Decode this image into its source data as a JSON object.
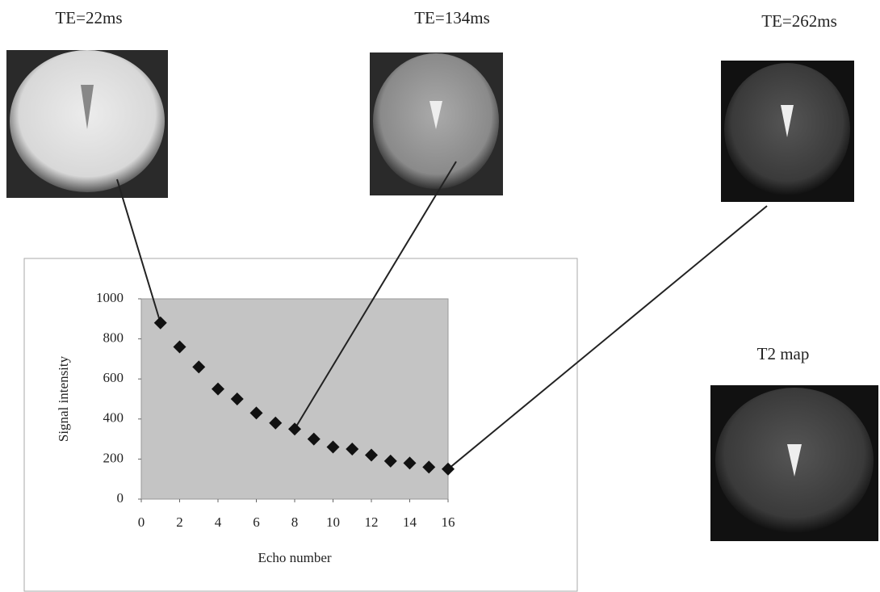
{
  "chart_data": {
    "type": "scatter",
    "x": [
      1,
      2,
      3,
      4,
      5,
      6,
      7,
      8,
      9,
      10,
      11,
      12,
      13,
      14,
      15,
      16
    ],
    "values": [
      880,
      760,
      660,
      550,
      500,
      430,
      380,
      350,
      300,
      260,
      250,
      220,
      190,
      180,
      160,
      150
    ],
    "color": "#111111",
    "marker": "diamond",
    "plot_background": "#c4c4c4",
    "xlim": [
      0,
      16
    ],
    "xticks": [
      0,
      2,
      4,
      6,
      8,
      10,
      12,
      14,
      16
    ],
    "ylim": [
      0,
      1000
    ],
    "yticks": [
      0,
      200,
      400,
      600,
      800,
      1000
    ],
    "xlabel": "Echo number",
    "ylabel": "Signal intensity",
    "annotations": [
      "TE=22ms",
      "TE=134ms",
      "TE=262ms",
      "T2 map"
    ]
  }
}
